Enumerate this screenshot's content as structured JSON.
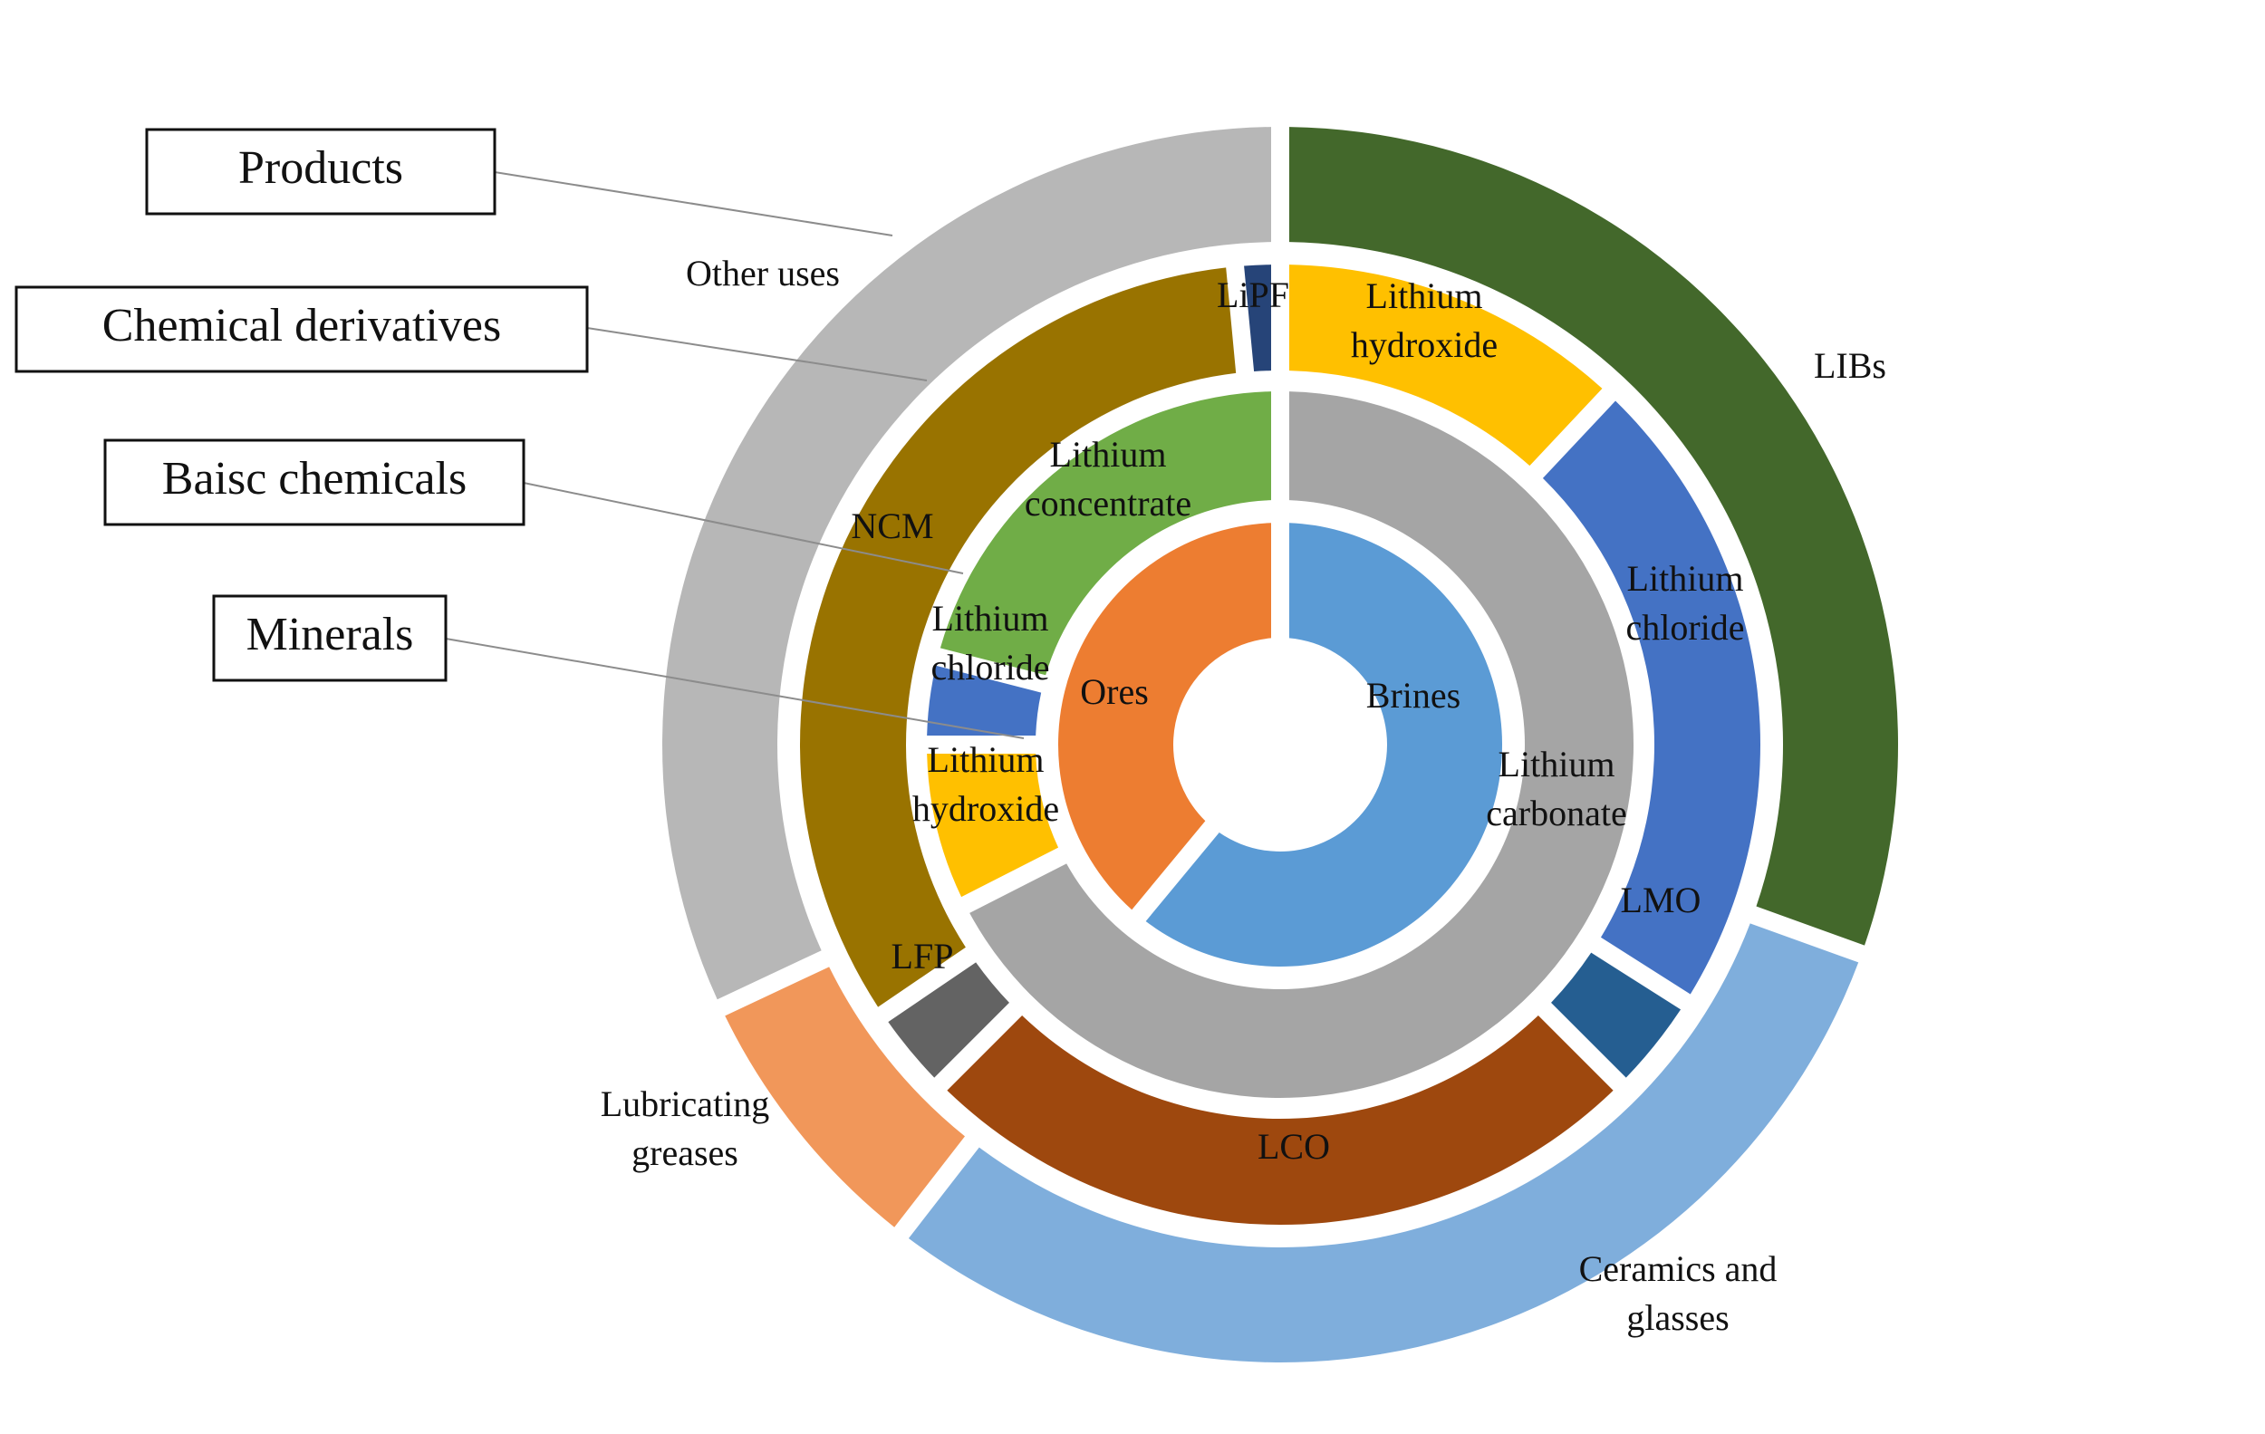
{
  "chart_data": {
    "type": "multi-level doughnut (sunburst)",
    "legend_boxes": [
      "Products",
      "Chemical derivatives",
      "Baisc chemicals",
      "Minerals"
    ],
    "rings": [
      {
        "level": "Minerals",
        "segments": [
          {
            "label": "Brines",
            "start": 0.0,
            "end": 0.61,
            "color": "#5B9BD5"
          },
          {
            "label": "Ores",
            "start": 0.61,
            "end": 1.0,
            "color": "#ED7D31"
          }
        ]
      },
      {
        "level": "Baisc chemicals",
        "segments": [
          {
            "label": "Lithium carbonate",
            "start": 0.0,
            "end": 0.675,
            "color": "#A5A5A5"
          },
          {
            "label": "Lithium hydroxide",
            "start": 0.675,
            "end": 0.75,
            "color": "#FFC000"
          },
          {
            "label": "Lithium chloride",
            "start": 0.75,
            "end": 0.79,
            "color": "#4472C4"
          },
          {
            "label": "Lithium concentrate",
            "start": 0.79,
            "end": 1.0,
            "color": "#70AD47"
          }
        ]
      },
      {
        "level": "Chemical derivatives",
        "segments": [
          {
            "label": "Lithium hydroxide",
            "start": 0.0,
            "end": 0.12,
            "color": "#FFC000"
          },
          {
            "label": "Lithium chloride",
            "start": 0.12,
            "end": 0.34,
            "color": "#4472C4"
          },
          {
            "label": "LMO",
            "start": 0.34,
            "end": 0.375,
            "color": "#255E91"
          },
          {
            "label": "LCO",
            "start": 0.375,
            "end": 0.625,
            "color": "#9E480E"
          },
          {
            "label": "LFP",
            "start": 0.625,
            "end": 0.655,
            "color": "#636363"
          },
          {
            "label": "NCM",
            "start": 0.655,
            "end": 0.985,
            "color": "#997300"
          },
          {
            "label": "LiPF",
            "start": 0.985,
            "end": 1.0,
            "color": "#264478"
          }
        ]
      },
      {
        "level": "Products",
        "segments": [
          {
            "label": "LIBs",
            "start": 0.0,
            "end": 0.305,
            "color": "#43682B"
          },
          {
            "label": "Ceramics and glasses",
            "start": 0.305,
            "end": 0.605,
            "color": "#7FAEDC"
          },
          {
            "label": "Lubricating greases",
            "start": 0.605,
            "end": 0.68,
            "color": "#F1975A"
          },
          {
            "label": "Other uses",
            "start": 0.68,
            "end": 1.0,
            "color": "#B7B7B7"
          }
        ]
      }
    ]
  }
}
